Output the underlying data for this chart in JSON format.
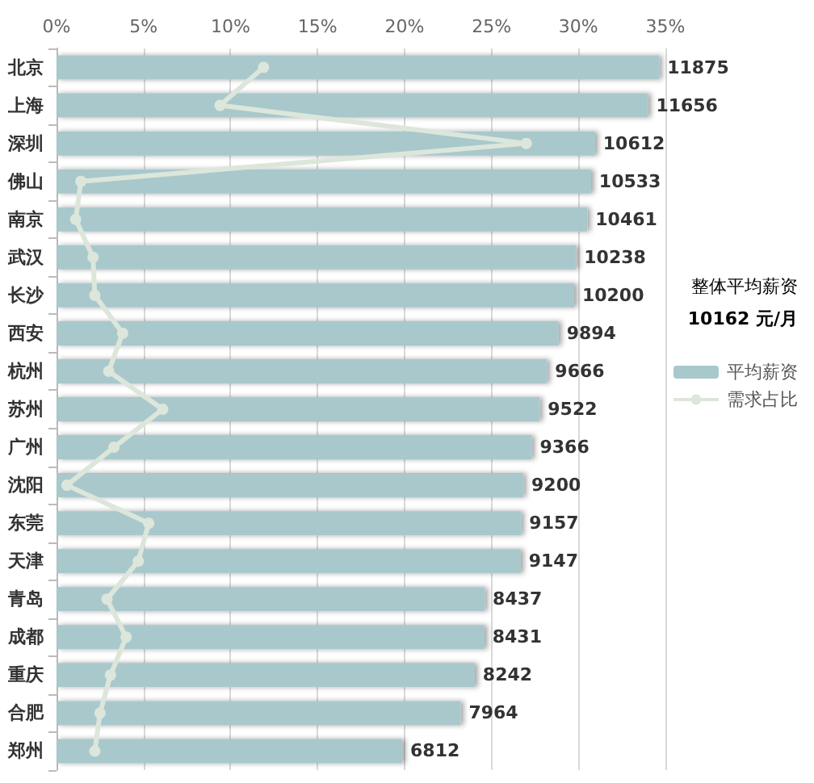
{
  "chart_data": {
    "type": "bar",
    "orientation": "horizontal",
    "categories": [
      "北京",
      "上海",
      "深圳",
      "佛山",
      "南京",
      "武汉",
      "长沙",
      "西安",
      "杭州",
      "苏州",
      "广州",
      "沈阳",
      "东莞",
      "天津",
      "青岛",
      "成都",
      "重庆",
      "合肥",
      "郑州"
    ],
    "series": [
      {
        "name": "平均薪资",
        "color": "#a8c8cc",
        "values": [
          11875,
          11656,
          10612,
          10533,
          10461,
          10238,
          10200,
          9894,
          9666,
          9522,
          9366,
          9200,
          9157,
          9147,
          8437,
          8431,
          8242,
          7964,
          6812
        ],
        "value_labels": [
          "11875",
          "11656",
          "10612",
          "10533",
          "10461",
          "10238",
          "10200",
          "9894",
          "9666",
          "9522",
          "9366",
          "9200",
          "9157",
          "9147",
          "8437",
          "8431",
          "8242",
          "7964",
          "6812"
        ]
      },
      {
        "name": "需求占比",
        "type": "line",
        "axis": "x2",
        "color": "#dce6da",
        "marker": "circle",
        "values": [
          11.9,
          9.4,
          27.0,
          1.4,
          1.1,
          2.1,
          2.2,
          3.8,
          3.0,
          6.1,
          3.3,
          0.6,
          5.3,
          4.7,
          2.9,
          4.0,
          3.1,
          2.5,
          2.2
        ]
      }
    ],
    "x2lim": [
      0,
      35
    ],
    "x2ticks": [
      {
        "value": 0,
        "label": "0%"
      },
      {
        "value": 5,
        "label": "5%"
      },
      {
        "value": 10,
        "label": "10%"
      },
      {
        "value": 15,
        "label": "15%"
      },
      {
        "value": 20,
        "label": "20%"
      },
      {
        "value": 25,
        "label": "25%"
      },
      {
        "value": 30,
        "label": "30%"
      },
      {
        "value": 35,
        "label": "35%"
      }
    ],
    "grid": "x",
    "legend": "right",
    "annotations": [
      "整体平均薪资",
      "10162 元/月"
    ]
  }
}
